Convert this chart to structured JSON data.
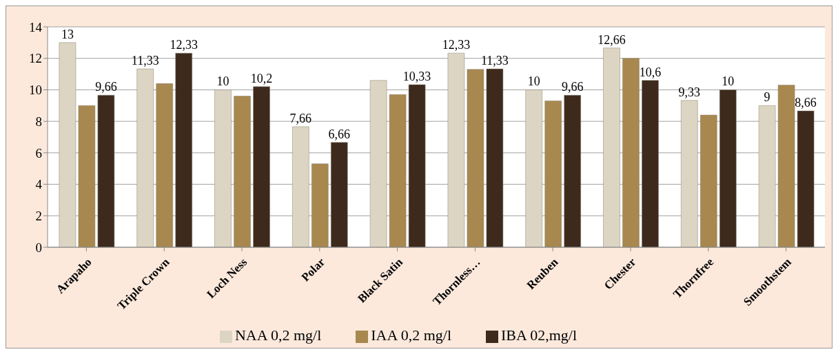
{
  "chart_data": {
    "type": "bar",
    "categories": [
      "Arapaho",
      "Triple Crown",
      "Loch Ness",
      "Polar",
      "Black Satin",
      "Thornless…",
      "Reuben",
      "Chester",
      "Thornfree",
      "Smoothstem"
    ],
    "series": [
      {
        "name": "NAA 0,2 mg/l",
        "color": "#ddd5c3",
        "values": [
          13,
          11.33,
          10,
          7.66,
          10.6,
          12.33,
          10,
          12.66,
          9.33,
          9
        ],
        "value_labels": [
          "13",
          "11,33",
          "10",
          "7,66",
          null,
          "12,33",
          "10",
          "12,66",
          "9,33",
          "9"
        ]
      },
      {
        "name": "IAA 0,2 mg/l",
        "color": "#a8884f",
        "values": [
          9,
          10.4,
          9.6,
          5.3,
          9.7,
          11.3,
          9.3,
          12,
          8.4,
          10.3
        ],
        "value_labels": [
          null,
          null,
          null,
          null,
          null,
          null,
          null,
          null,
          null,
          null
        ]
      },
      {
        "name": "IBA 02,mg/l",
        "color": "#3d2a1d",
        "values": [
          9.66,
          12.33,
          10.2,
          6.66,
          10.33,
          11.33,
          9.66,
          10.6,
          10,
          8.66
        ],
        "value_labels": [
          "9,66",
          "12,33",
          "10,2",
          "6,66",
          "10,33",
          "11,33",
          "9,66",
          "10,6",
          "10",
          "8,66"
        ]
      }
    ],
    "ylim": [
      0,
      14
    ],
    "yticks": [
      0,
      2,
      4,
      6,
      8,
      10,
      12,
      14
    ],
    "grid": "y",
    "legend": "bottom"
  }
}
